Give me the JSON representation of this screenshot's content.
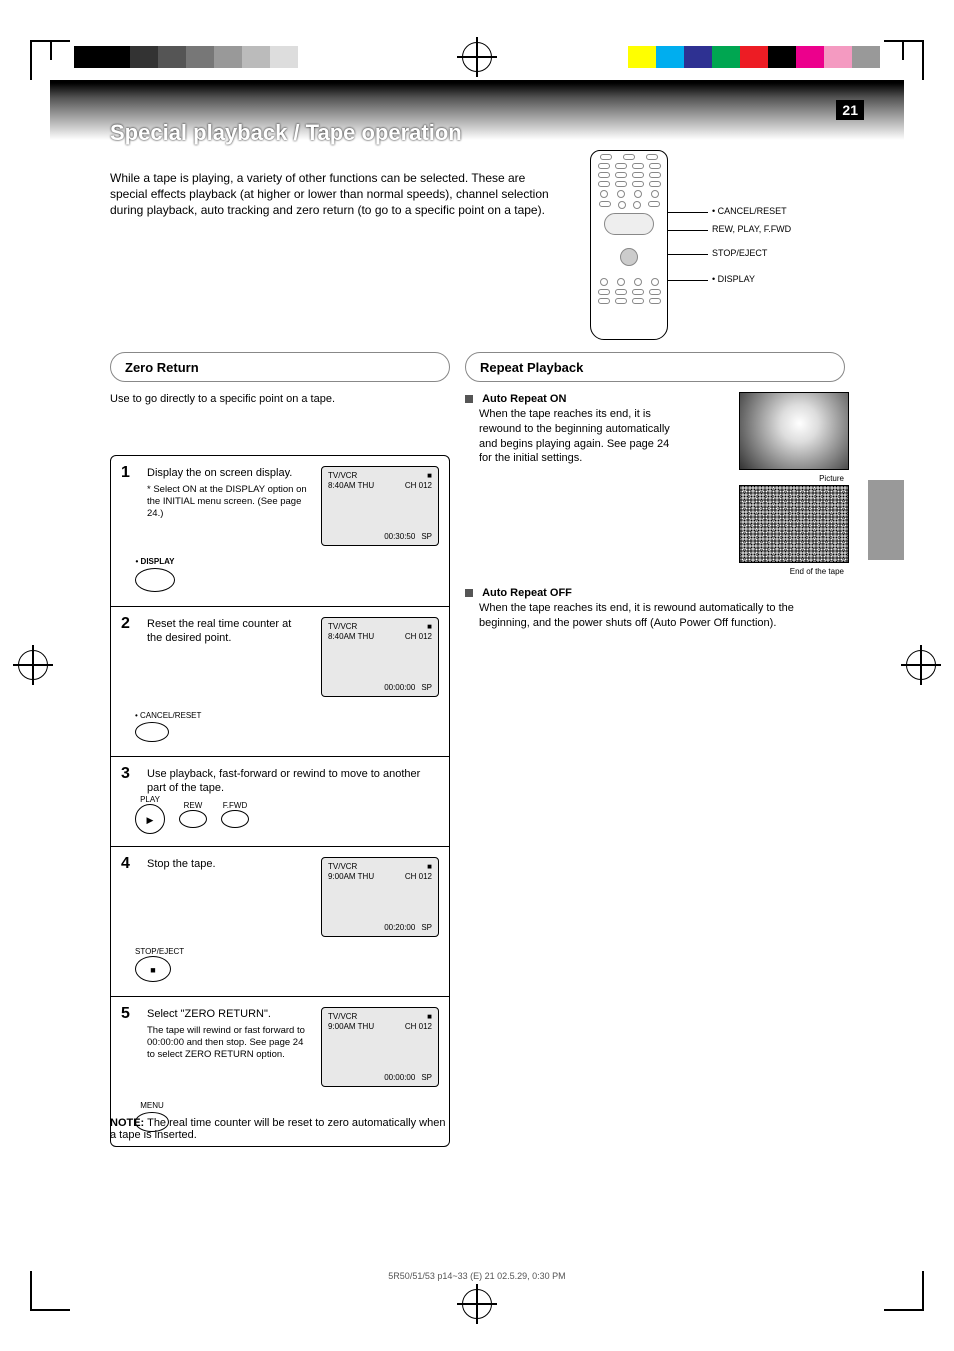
{
  "colorbar_left": [
    "#000000",
    "#000000",
    "#333333",
    "#555555",
    "#777777",
    "#999999",
    "#bbbbbb",
    "#dddddd",
    "#ffffff"
  ],
  "colorbar_right": [
    "#ffff00",
    "#00aeef",
    "#2e3192",
    "#00a651",
    "#ed1c24",
    "#000000",
    "#ec008c",
    "#f49ac1",
    "#999999"
  ],
  "page_number": "21",
  "title": "Special playback / Tape operation",
  "intro": "While a tape is playing, a variety of other functions can be selected. These are special effects playback (at higher or lower than normal speeds), channel selection during playback, auto tracking and zero return (to go to a specific point on a tape).",
  "remote_labels": {
    "reset": "• CANCEL/RESET",
    "ffrew": "REW, PLAY, F.FWD",
    "stop": "STOP/EJECT",
    "display": "• DISPLAY"
  },
  "sections": {
    "left": "Zero Return",
    "right": "Repeat Playback"
  },
  "left_intro": "Use to go directly to a specific point on a tape.",
  "right_blocks": [
    {
      "head": "Auto Repeat ON",
      "body": "When the tape reaches its end, it is rewound to the beginning automatically and begins playing again. See page 24 for the initial settings."
    },
    {
      "head": "Auto Repeat OFF",
      "body": "When the tape reaches its end, it is rewound automatically to the beginning, and the power shuts off (Auto Power Off function)."
    }
  ],
  "photo_caption": "Picture",
  "snow_caption": "End of the tape",
  "steps": [
    {
      "num": "1",
      "txt": "Display the on screen display.",
      "sub": "* Select ON at the DISPLAY option on the INITIAL menu screen. (See page 24.)",
      "btn_label": "• DISPLAY",
      "btn_type": "ellipse",
      "osd": {
        "l1": "TV/VCR",
        "r1": "■",
        "l2": "8:40AM  THU",
        "r2": "CH 012",
        "bot": "00:30:50",
        "sp": "SP"
      }
    },
    {
      "num": "2",
      "txt": "Reset the real time counter at the desired point.",
      "btn_label": "• CANCEL/RESET",
      "btn_type": "ellipse-small",
      "osd": {
        "l1": "TV/VCR",
        "r1": "■",
        "l2": "8:40AM  THU",
        "r2": "CH 012",
        "bot": "00:00:00",
        "sp": "SP"
      }
    },
    {
      "num": "3",
      "txt": "Use playback, fast-forward or rewind to move to another part of the tape.",
      "btn_labels": [
        "PLAY",
        "REW",
        "F.FWD"
      ]
    },
    {
      "num": "4",
      "txt": "Stop the tape.",
      "btn_label": "STOP/EJECT",
      "btn_type": "round-stop",
      "osd": {
        "l1": "TV/VCR",
        "r1": "■",
        "l2": "9:00AM  THU",
        "r2": "CH 012",
        "bot": "00:20:00",
        "sp": "SP"
      }
    },
    {
      "num": "5",
      "txt": "Select \"ZERO RETURN\".",
      "sub": "The tape will rewind or fast forward to 00:00:00 and then stop.\nSee page 24 to select ZERO RETURN option.",
      "btn_label": "MENU",
      "btn_type": "ellipse-small",
      "osd": {
        "l1": "TV/VCR",
        "r1": "■",
        "l2": "9:00AM  THU",
        "r2": "CH 012",
        "bot": "00:00:00",
        "sp": "SP"
      }
    }
  ],
  "note_head": "NOTE:",
  "note_body": "The real time counter will be reset to zero automatically when a tape is inserted.",
  "footer": "5R50/51/53  p14~33  (E)        21        02.5.29, 0:30 PM"
}
